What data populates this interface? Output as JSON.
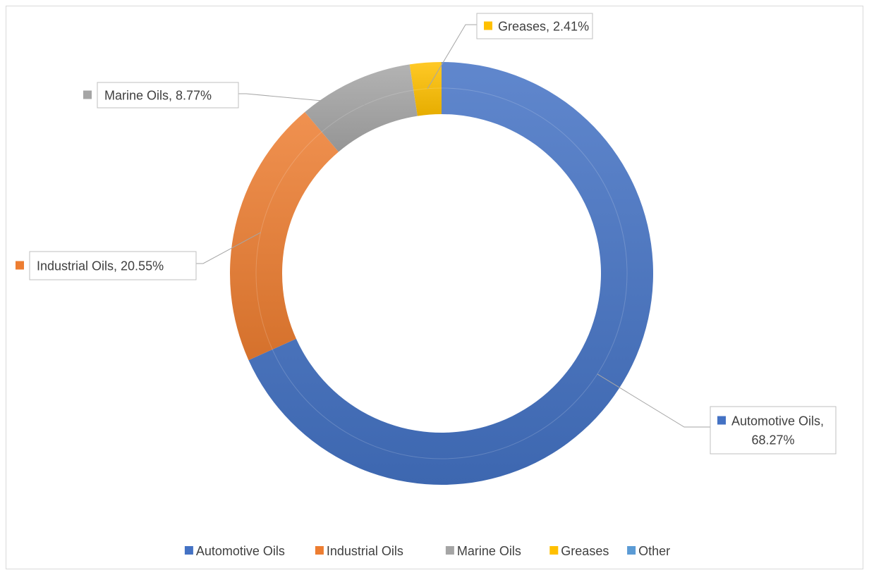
{
  "chart_data": {
    "type": "donut",
    "title": "",
    "categories": [
      "Automotive Oils",
      "Industrial Oils",
      "Marine Oils",
      "Greases",
      "Other"
    ],
    "values": [
      68.27,
      20.55,
      8.77,
      2.41,
      0
    ],
    "unit": "%",
    "colors": [
      "#4472C4",
      "#ED7D31",
      "#A5A5A5",
      "#FFC000",
      "#5B9BD5"
    ],
    "data_labels": [
      {
        "category": "Automotive Oils",
        "lines": [
          "Automotive Oils,",
          "68.27%"
        ]
      },
      {
        "category": "Industrial Oils",
        "lines": [
          "Industrial Oils, 20.55%"
        ]
      },
      {
        "category": "Marine Oils",
        "lines": [
          "Marine Oils, 8.77%"
        ]
      },
      {
        "category": "Greases",
        "lines": [
          "Greases, 2.41%"
        ]
      }
    ],
    "legend": {
      "position": "bottom",
      "entries": [
        "Automotive Oils",
        "Industrial Oils",
        "Marine Oils",
        "Greases",
        "Other"
      ]
    }
  }
}
